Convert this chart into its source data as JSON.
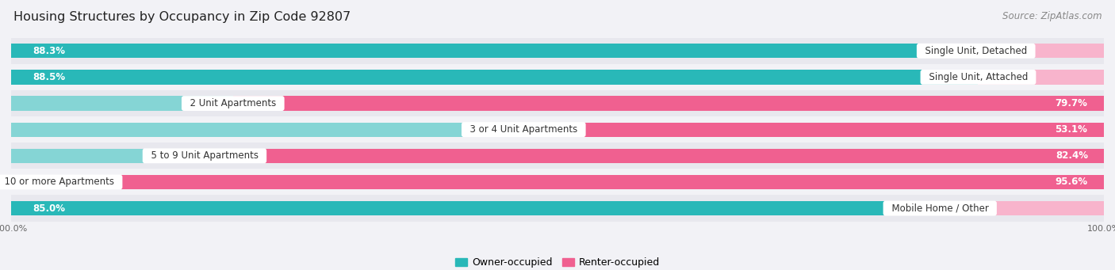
{
  "title": "Housing Structures by Occupancy in Zip Code 92807",
  "source": "Source: ZipAtlas.com",
  "categories": [
    "Single Unit, Detached",
    "Single Unit, Attached",
    "2 Unit Apartments",
    "3 or 4 Unit Apartments",
    "5 to 9 Unit Apartments",
    "10 or more Apartments",
    "Mobile Home / Other"
  ],
  "owner_pct": [
    88.3,
    88.5,
    20.3,
    46.9,
    17.7,
    4.4,
    85.0
  ],
  "renter_pct": [
    11.7,
    11.5,
    79.7,
    53.1,
    82.4,
    95.6,
    15.0
  ],
  "owner_color_dark": "#29b8b8",
  "owner_color_light": "#85d5d5",
  "renter_color_dark": "#f06090",
  "renter_color_light": "#f8b4cc",
  "row_bg_odd": "#e8e8ee",
  "row_bg_even": "#f2f2f6",
  "bg_color": "#f2f2f6",
  "bar_height": 0.55,
  "title_fontsize": 11.5,
  "label_fontsize": 8.5,
  "pct_fontsize": 8.5,
  "tick_fontsize": 8,
  "source_fontsize": 8.5,
  "legend_fontsize": 9
}
